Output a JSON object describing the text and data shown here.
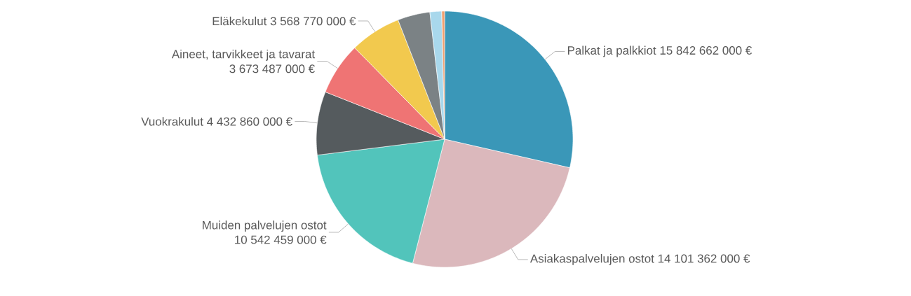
{
  "chart_data": {
    "type": "pie",
    "categories": [
      "Palkat ja palkkiot",
      "Asiakaspalvelujen ostot",
      "Muiden palvelujen ostot",
      "Vuokrakulut",
      "Aineet, tarvikkeet ja tavarat",
      "Eläkekulut",
      null,
      null,
      null
    ],
    "values": [
      15842662000,
      14101362000,
      10542459000,
      4432860000,
      3673487000,
      3568770000,
      2260000000,
      820000000,
      200000000
    ],
    "value_labels": [
      "15 842 662 000 €",
      "14 101 362 000 €",
      "10 542 459 000 €",
      "4 432 860 000 €",
      "3 673 487 000 €",
      "3 568 770 000 €",
      null,
      null,
      null
    ],
    "colors": [
      "#3a97b8",
      "#dbb8bc",
      "#52c4bb",
      "#555b5e",
      "#ef7474",
      "#f2c94e",
      "#7b8285",
      "#a9d8ec",
      "#f0a070"
    ]
  }
}
